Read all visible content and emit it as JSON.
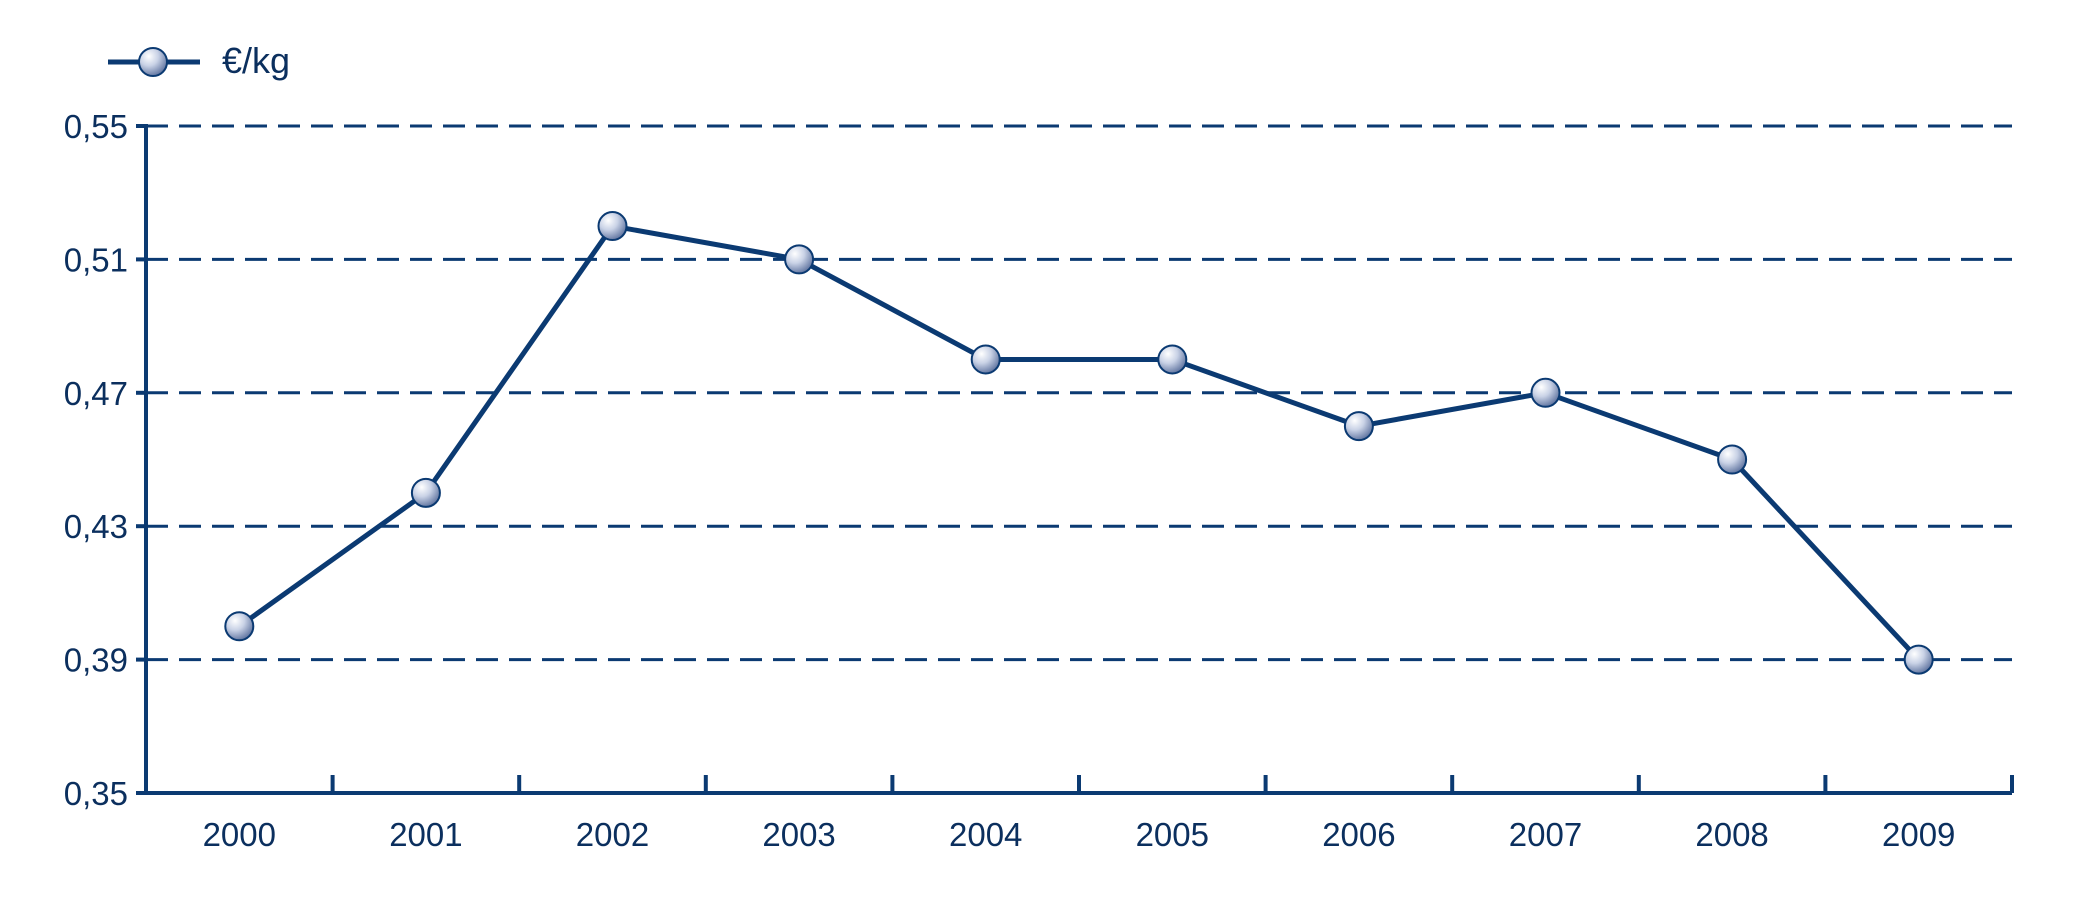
{
  "chart_data": {
    "type": "line",
    "title": "",
    "xlabel": "",
    "ylabel": "",
    "categories": [
      "2000",
      "2001",
      "2002",
      "2003",
      "2004",
      "2005",
      "2006",
      "2007",
      "2008",
      "2009"
    ],
    "series": [
      {
        "name": "€/kg",
        "values": [
          0.4,
          0.44,
          0.52,
          0.51,
          0.48,
          0.48,
          0.46,
          0.47,
          0.45,
          0.39
        ]
      }
    ],
    "ylim": [
      0.35,
      0.55
    ],
    "yticks": [
      "0,35",
      "0,39",
      "0,43",
      "0,47",
      "0,51",
      "0,55"
    ],
    "ytick_values": [
      0.35,
      0.39,
      0.43,
      0.47,
      0.51,
      0.55
    ],
    "grid": "dashed horizontal",
    "legend_position": "top-left",
    "colors": {
      "line": "#0b3a72",
      "marker_light": "#ffffff",
      "marker_dark": "#5a6f9c"
    }
  }
}
